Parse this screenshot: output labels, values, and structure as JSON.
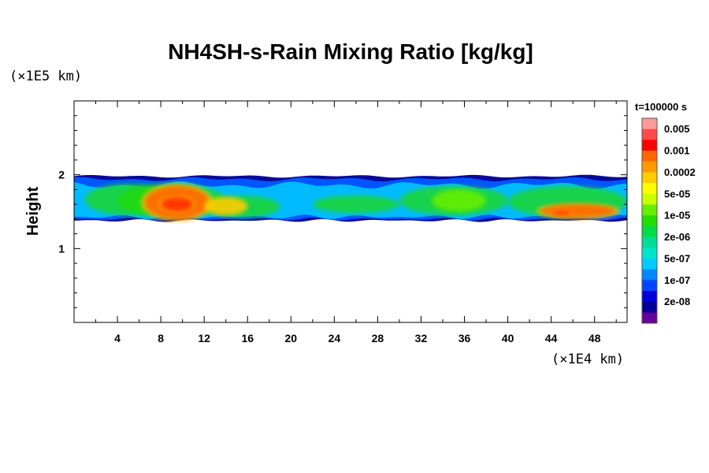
{
  "chart_data": {
    "type": "heatmap",
    "title": "NH4SH-s-Rain Mixing Ratio [kg/kg]",
    "xlabel": "",
    "ylabel": "Height",
    "x_unit": "(×1E4 km)",
    "y_unit": "(×1E5 km)",
    "time_label": "t=100000 s",
    "xlim": [
      0,
      51
    ],
    "ylim": [
      0,
      3
    ],
    "x_ticks": [
      4,
      8,
      12,
      16,
      20,
      24,
      28,
      32,
      36,
      40,
      44,
      48
    ],
    "y_ticks": [
      1,
      2
    ],
    "colorbar": {
      "levels": [
        "0.005",
        "0.001",
        "0.0002",
        "5e-05",
        "1e-05",
        "2e-06",
        "5e-07",
        "1e-07",
        "2e-08"
      ],
      "colors": [
        "#ff9a9a",
        "#ff4a4a",
        "#ff0000",
        "#ff6600",
        "#ff9900",
        "#ffcc00",
        "#ffff00",
        "#ccff00",
        "#66ee00",
        "#22dd00",
        "#00dd44",
        "#00dd99",
        "#00e5cc",
        "#00ccff",
        "#0088ff",
        "#0044ff",
        "#0000dd",
        "#000099",
        "#660099"
      ]
    },
    "field": {
      "layer_base": 1.38,
      "layer_top": 1.98,
      "high_regions": [
        {
          "x": [
            6.5,
            12.5
          ],
          "y": [
            1.4,
            1.85
          ],
          "level": "0.0002"
        },
        {
          "x": [
            8,
            11
          ],
          "y": [
            1.5,
            1.7
          ],
          "level": "0.001"
        },
        {
          "x": [
            12,
            16
          ],
          "y": [
            1.45,
            1.7
          ],
          "level": "5e-05"
        },
        {
          "x": [
            33,
            38
          ],
          "y": [
            1.5,
            1.8
          ],
          "level": "1e-05"
        },
        {
          "x": [
            43,
            50
          ],
          "y": [
            1.42,
            1.6
          ],
          "level": "0.0002"
        },
        {
          "x": [
            44,
            46
          ],
          "y": [
            1.45,
            1.52
          ],
          "level": "0.001"
        }
      ]
    }
  }
}
